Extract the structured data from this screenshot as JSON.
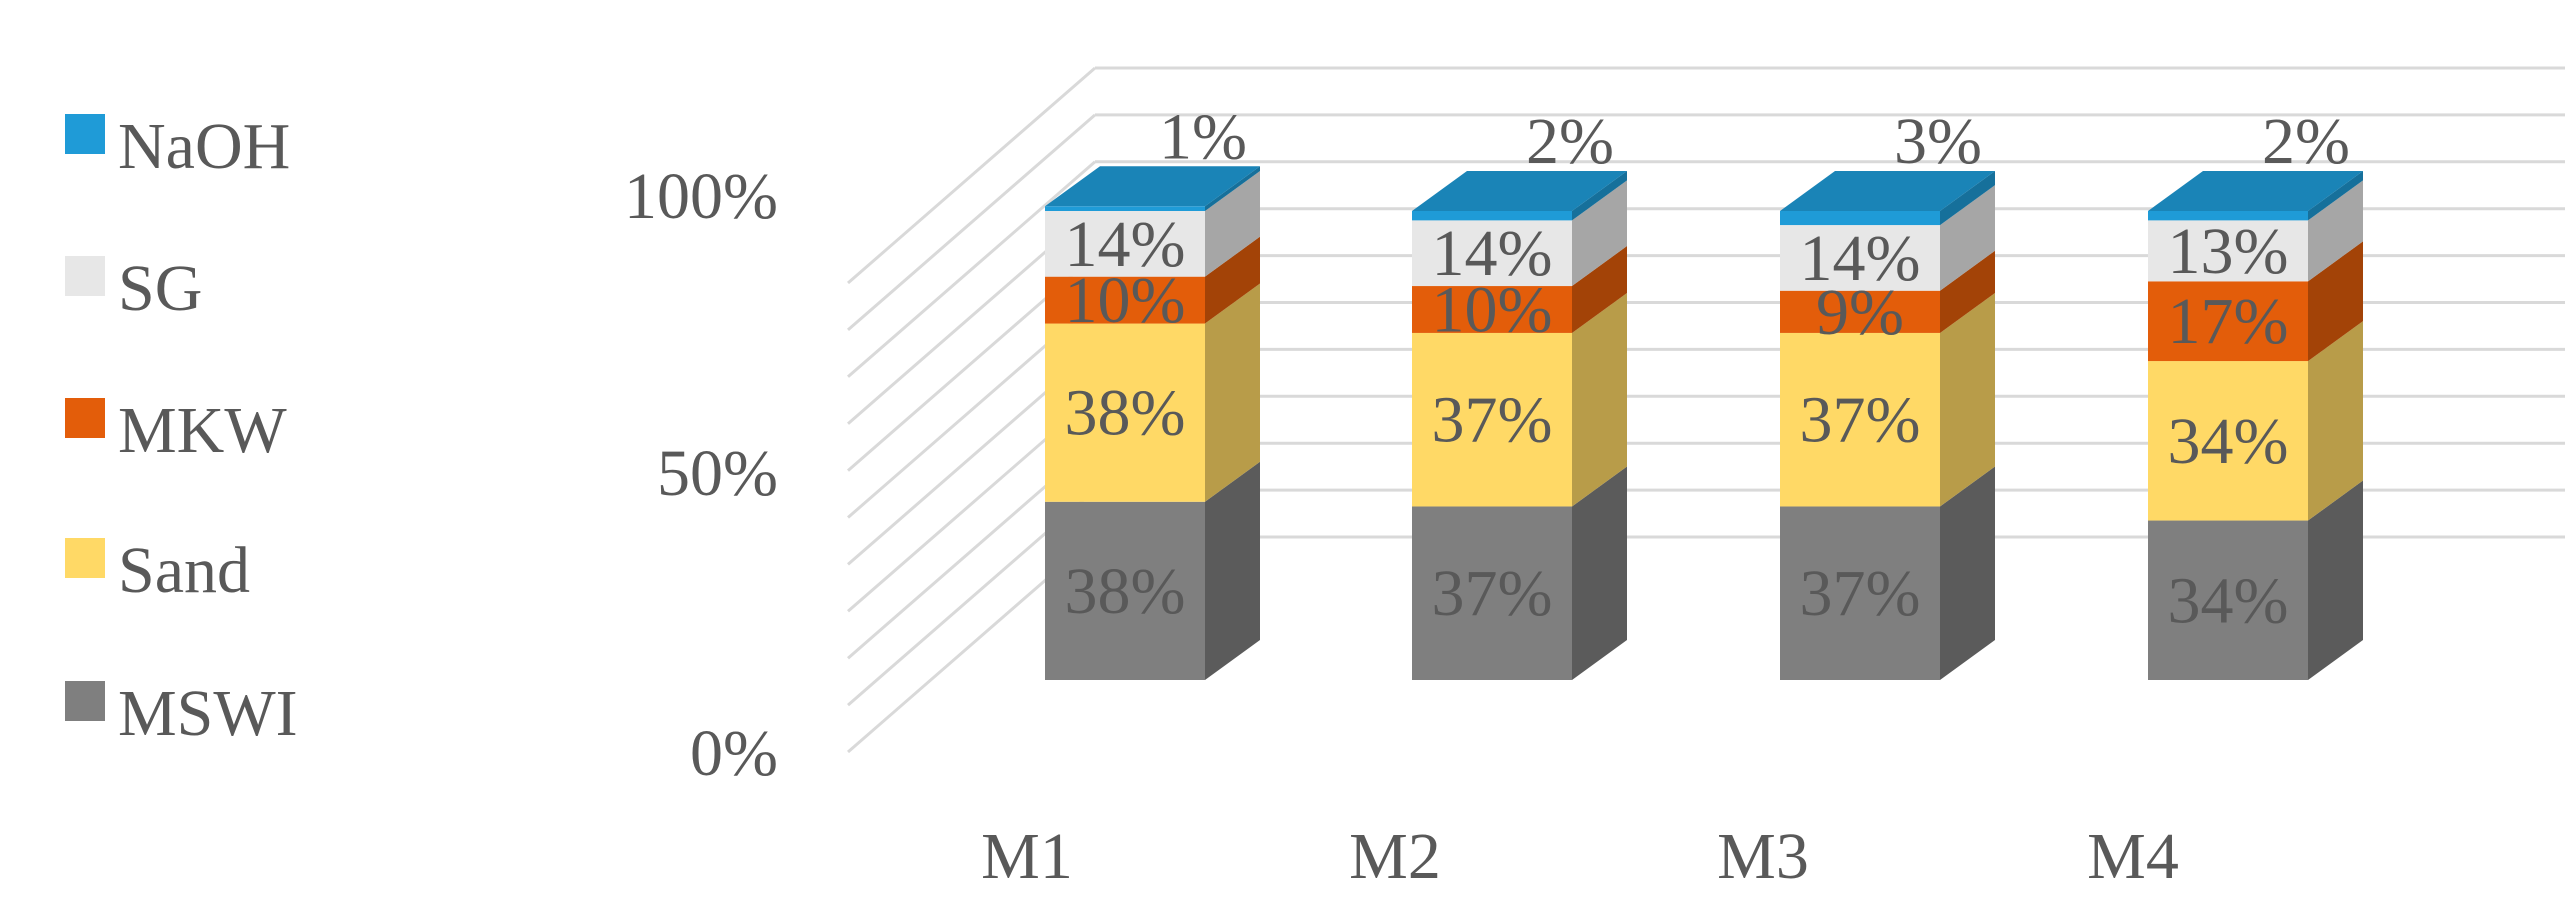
{
  "chart_data": {
    "type": "bar",
    "stacked": true,
    "normalized": true,
    "style": "3d-stacked-column",
    "categories": [
      "M1",
      "M2",
      "M3",
      "M4"
    ],
    "series": [
      {
        "name": "MSWI",
        "color": "#7f7f7f",
        "values": [
          38,
          37,
          37,
          34
        ],
        "labels": [
          "38%",
          "37%",
          "37%",
          "34%"
        ]
      },
      {
        "name": "Sand",
        "color": "#ffd966",
        "values": [
          38,
          37,
          37,
          34
        ],
        "labels": [
          "38%",
          "37%",
          "37%",
          "34%"
        ]
      },
      {
        "name": "MKW",
        "color": "#e35d0a",
        "values": [
          10,
          10,
          9,
          17
        ],
        "labels": [
          "10%",
          "10%",
          "9%",
          "17%"
        ]
      },
      {
        "name": "SG",
        "color": "#e7e7e7",
        "values": [
          14,
          14,
          14,
          13
        ],
        "labels": [
          "14%",
          "14%",
          "14%",
          "13%"
        ]
      },
      {
        "name": "NaOH",
        "color": "#1f9bd7",
        "values": [
          1,
          2,
          3,
          2
        ],
        "labels": [
          "1%",
          "2%",
          "3%",
          "2%"
        ]
      }
    ],
    "yticks": [
      "0%",
      "50%",
      "100%"
    ],
    "ylim": [
      0,
      100
    ],
    "grid": true,
    "legend": "left",
    "legend_order": [
      "NaOH",
      "SG",
      "MKW",
      "Sand",
      "MSWI"
    ]
  }
}
